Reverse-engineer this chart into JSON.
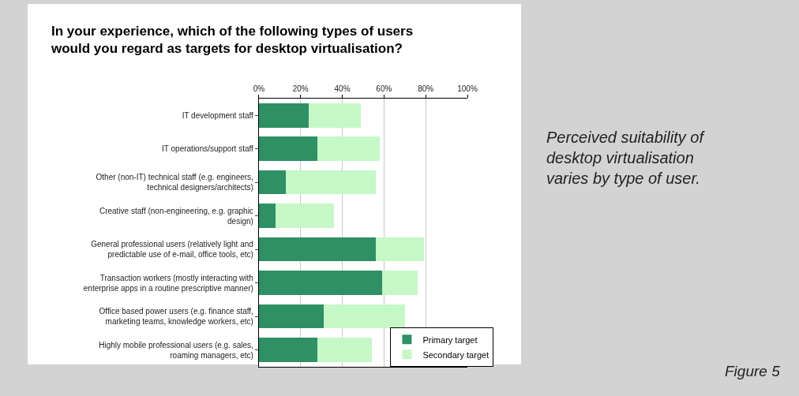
{
  "chart_data": {
    "type": "bar",
    "orientation": "horizontal",
    "stacked": true,
    "title": "In your experience, which of the following types of users\nwould you regard as targets for desktop virtualisation?",
    "categories": [
      "IT development staff",
      "IT operations/support staff",
      "Other (non-IT) technical staff (e.g. engineers,\ntechnical designers/architects)",
      "Creative staff (non-engineering, e.g. graphic\ndesign)",
      "General professional users (relatively light and\npredictable use of e-mail, office tools, etc)",
      "Transaction workers (mostly interacting with\nenterprise apps in a routine prescriptive manner)",
      "Office based power users (e.g. finance staff,\nmarketing teams, knowledge workers, etc)",
      "Highly mobile professional users (e.g. sales,\nroaming managers, etc)"
    ],
    "series": [
      {
        "name": "Primary target",
        "color": "#2e9064",
        "values": [
          24,
          28,
          13,
          8,
          56,
          59,
          31,
          28
        ]
      },
      {
        "name": "Secondary target",
        "color": "#c6f7c6",
        "values": [
          25,
          30,
          43,
          28,
          23,
          17,
          39,
          26
        ]
      }
    ],
    "xlim": [
      0,
      100
    ],
    "xticks": [
      {
        "value": 0,
        "label": "0%"
      },
      {
        "value": 20,
        "label": "20%"
      },
      {
        "value": 40,
        "label": "40%"
      },
      {
        "value": 60,
        "label": "60%"
      },
      {
        "value": 80,
        "label": "80%"
      },
      {
        "value": 100,
        "label": "100%"
      }
    ],
    "grid": "x",
    "legend": "bottom right",
    "annotations": [
      "Perceived suitability of\ndesktop virtualisation\nvaries by type of user.",
      "Figure 5"
    ]
  }
}
